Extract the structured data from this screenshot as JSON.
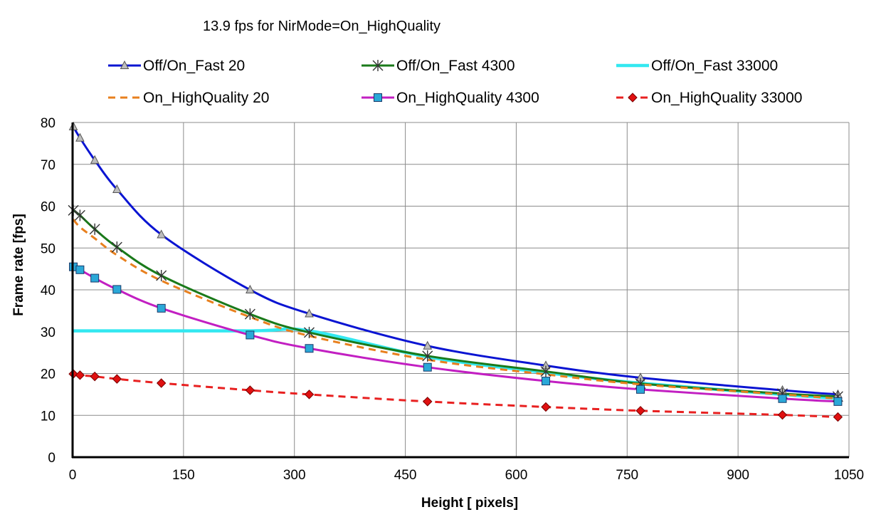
{
  "chart_data": {
    "type": "line",
    "title": "13.9 fps for NirMode=On_HighQuality",
    "xlabel": "Height [ pixels]",
    "ylabel": "Frame rate [fps]",
    "xlim": [
      0,
      1050
    ],
    "ylim": [
      0,
      80
    ],
    "x_ticks": [
      "0",
      "150",
      "300",
      "450",
      "600",
      "750",
      "900",
      "1050"
    ],
    "y_ticks": [
      "0",
      "10",
      "20",
      "30",
      "40",
      "50",
      "60",
      "70",
      "80"
    ],
    "grid": true,
    "legend_position": "top",
    "series": [
      {
        "name": "Off/On_Fast 20",
        "color": "#0a14d2",
        "line_style": "solid",
        "marker": "triangle",
        "marker_fill": "#bdbdbd",
        "x": [
          1,
          10,
          30,
          60,
          120,
          240,
          320,
          480,
          640,
          768,
          960,
          1035
        ],
        "y": [
          79,
          76.3,
          71,
          64,
          53.2,
          40,
          34.3,
          26.6,
          21.9,
          19,
          16,
          15
        ]
      },
      {
        "name": "Off/On_Fast 4300",
        "color": "#1a7a1a",
        "line_style": "solid",
        "marker": "asterisk",
        "marker_fill": "#333333",
        "x": [
          1,
          10,
          30,
          60,
          120,
          240,
          320,
          480,
          640,
          768,
          960,
          1035
        ],
        "y": [
          59,
          57.8,
          54.5,
          50.2,
          43.4,
          34.2,
          29.8,
          24.2,
          20.5,
          17.6,
          15.2,
          14.5
        ]
      },
      {
        "name": "Off/On_Fast 33000",
        "color": "#33e8f0",
        "line_style": "solid-thick",
        "marker": "none",
        "x": [
          1,
          240,
          320,
          480,
          640,
          768,
          960,
          1035
        ],
        "y": [
          30.2,
          30.2,
          30.2,
          24,
          20.2,
          17.7,
          15,
          14
        ]
      },
      {
        "name": "On_HighQuality 20",
        "color": "#e8801e",
        "line_style": "dashed",
        "marker": "none",
        "x": [
          1,
          10,
          30,
          60,
          120,
          240,
          320,
          480,
          640,
          768,
          960,
          1035
        ],
        "y": [
          56.8,
          55,
          52.3,
          48.3,
          42.2,
          33.5,
          29,
          23.3,
          19.8,
          17.4,
          15,
          14
        ]
      },
      {
        "name": "On_HighQuality 4300",
        "color": "#c21fc2",
        "line_style": "solid",
        "marker": "square",
        "marker_fill": "#2aa8d8",
        "x": [
          1,
          10,
          30,
          60,
          120,
          240,
          320,
          480,
          640,
          768,
          960,
          1035
        ],
        "y": [
          45.5,
          44.8,
          42.8,
          40.1,
          35.6,
          29.2,
          26,
          21.5,
          18.2,
          16.2,
          14,
          13.3
        ]
      },
      {
        "name": "On_HighQuality 33000",
        "color": "#e82020",
        "line_style": "dashed",
        "marker": "diamond",
        "marker_fill": "#e01010",
        "x": [
          1,
          10,
          30,
          60,
          120,
          240,
          320,
          480,
          640,
          768,
          960,
          1035
        ],
        "y": [
          19.9,
          19.6,
          19.3,
          18.7,
          17.7,
          16,
          15,
          13.3,
          12,
          11.1,
          10.1,
          9.6
        ]
      }
    ]
  }
}
